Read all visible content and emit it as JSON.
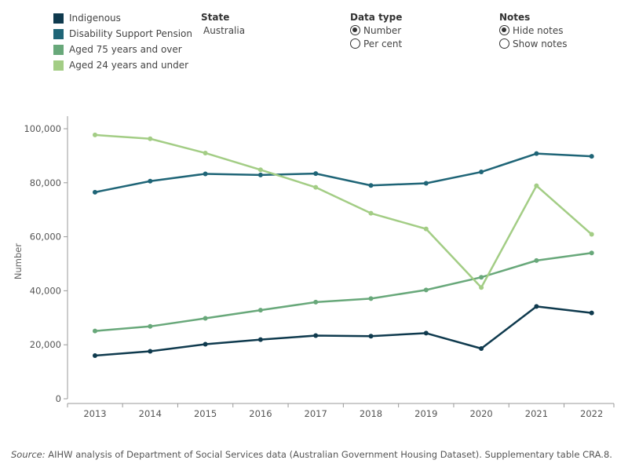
{
  "legend": [
    {
      "label": "Indigenous",
      "color": "#0f3a4e"
    },
    {
      "label": "Disability Support Pension",
      "color": "#1f6577"
    },
    {
      "label": "Aged 75 years and over",
      "color": "#68a87a"
    },
    {
      "label": "Aged 24 years and under",
      "color": "#a3cd85"
    }
  ],
  "filters": {
    "state": {
      "title": "State",
      "value": "Australia"
    },
    "data_type": {
      "title": "Data type",
      "options": [
        "Number",
        "Per cent"
      ],
      "selected": "Number"
    },
    "notes": {
      "title": "Notes",
      "options": [
        "Hide notes",
        "Show notes"
      ],
      "selected": "Hide notes"
    }
  },
  "source": {
    "label": "Source:",
    "text": " AIHW analysis of Department of Social Services data (Australian Government Housing Dataset). Supplementary table CRA.8."
  },
  "chart_data": {
    "type": "line",
    "title": "",
    "xlabel": "",
    "ylabel": "Number",
    "x": [
      "2013",
      "2014",
      "2015",
      "2016",
      "2017",
      "2018",
      "2019",
      "2020",
      "2021",
      "2022"
    ],
    "ylim": [
      0,
      100000
    ],
    "yticks": [
      0,
      20000,
      40000,
      60000,
      80000,
      100000
    ],
    "ytick_labels": [
      "0",
      "20,000",
      "40,000",
      "60,000",
      "80,000",
      "100,000"
    ],
    "grid": false,
    "legend_position": "top-left",
    "series": [
      {
        "name": "Indigenous",
        "color": "#0f3a4e",
        "values": [
          16000,
          17600,
          20200,
          21900,
          23400,
          23200,
          24300,
          18600,
          34200,
          31800
        ]
      },
      {
        "name": "Disability Support Pension",
        "color": "#1f6577",
        "values": [
          76500,
          80600,
          83300,
          82900,
          83400,
          79000,
          79800,
          84000,
          90800,
          89800
        ]
      },
      {
        "name": "Aged 75 years and over",
        "color": "#68a87a",
        "values": [
          25100,
          26800,
          29800,
          32800,
          35800,
          37100,
          40300,
          45000,
          51200,
          54000
        ]
      },
      {
        "name": "Aged 24 years and under",
        "color": "#a3cd85",
        "values": [
          97700,
          96300,
          91000,
          84800,
          78300,
          68700,
          62900,
          41200,
          78900,
          60900
        ]
      }
    ]
  }
}
